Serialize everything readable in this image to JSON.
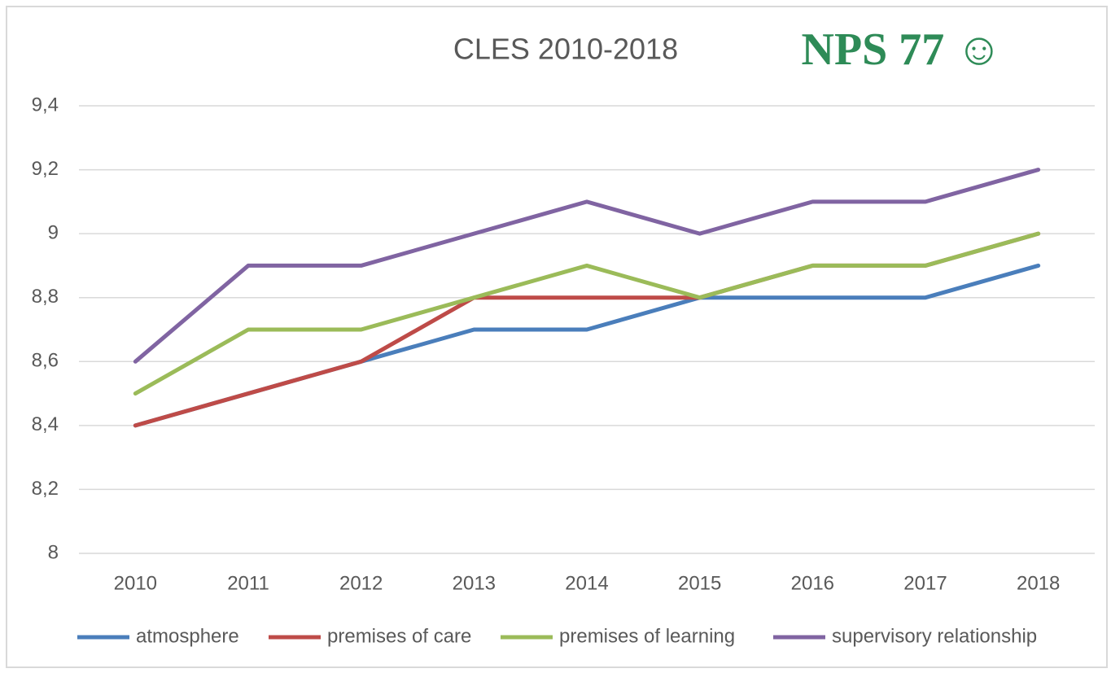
{
  "chart_data": {
    "type": "line",
    "title": "CLES 2010-2018",
    "annotation": "NPS 77 ☺",
    "categories": [
      "2010",
      "2011",
      "2012",
      "2013",
      "2014",
      "2015",
      "2016",
      "2017",
      "2018"
    ],
    "series": [
      {
        "name": "atmosphere",
        "color": "#4a7ebb",
        "values": [
          8.4,
          8.5,
          8.6,
          8.7,
          8.7,
          8.8,
          8.8,
          8.8,
          8.9
        ]
      },
      {
        "name": "premises of care",
        "color": "#be4b48",
        "values": [
          8.4,
          8.5,
          8.6,
          8.8,
          8.8,
          8.8,
          8.9,
          8.9,
          9.0
        ]
      },
      {
        "name": "premises of learning",
        "color": "#9bbb59",
        "values": [
          8.5,
          8.7,
          8.7,
          8.8,
          8.9,
          8.8,
          8.9,
          8.9,
          9.0
        ]
      },
      {
        "name": "supervisory relationship",
        "color": "#8064a2",
        "values": [
          8.6,
          8.9,
          8.9,
          9.0,
          9.1,
          9.0,
          9.1,
          9.1,
          9.2
        ]
      }
    ],
    "ylim": [
      8,
      9.4
    ],
    "yticks": [
      8,
      {
        "value": 8.2,
        "label": "8,2"
      },
      {
        "value": 8.4,
        "label": "8,4"
      },
      {
        "value": 8.6,
        "label": "8,6"
      },
      {
        "value": 8.8,
        "label": "8,8"
      },
      9,
      {
        "value": 9.2,
        "label": "9,2"
      },
      {
        "value": 9.4,
        "label": "9,4"
      }
    ],
    "grid": true,
    "legend": "bottom"
  }
}
